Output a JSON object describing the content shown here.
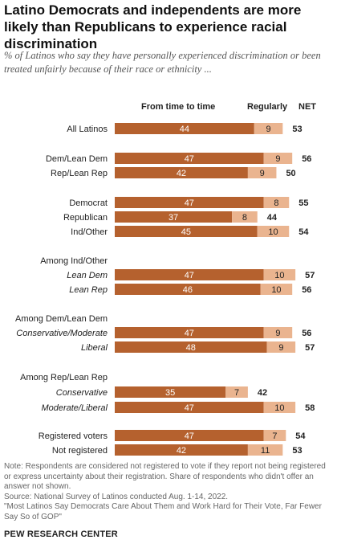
{
  "title": "Latino Democrats and independents are more likely than Republicans to experience racial discrimination",
  "subtitle": "% of Latinos who say they have personally experienced discrimination or been treated unfairly because of their race or ethnicity ...",
  "columns": {
    "from_time_to_time": "From time to time",
    "regularly": "Regularly",
    "net": "NET"
  },
  "colors": {
    "from_time_to_time": "#b5612e",
    "regularly": "#eab48f",
    "text_on_dark": "#ffffff",
    "text_on_light": "#222222"
  },
  "chart_data": {
    "type": "bar",
    "stacked": true,
    "orientation": "horizontal",
    "series": [
      {
        "name": "From time to time"
      },
      {
        "name": "Regularly"
      }
    ],
    "rows": [
      {
        "label": "All Latinos",
        "from_time_to_time": 44,
        "regularly": 9,
        "net": 53,
        "group": 0
      },
      {
        "label": "Dem/Lean Dem",
        "from_time_to_time": 47,
        "regularly": 9,
        "net": 56,
        "group": 1
      },
      {
        "label": "Rep/Lean Rep",
        "from_time_to_time": 42,
        "regularly": 9,
        "net": 50,
        "group": 1
      },
      {
        "label": "Democrat",
        "from_time_to_time": 47,
        "regularly": 8,
        "net": 55,
        "group": 2
      },
      {
        "label": "Republican",
        "from_time_to_time": 37,
        "regularly": 8,
        "net": 44,
        "group": 2
      },
      {
        "label": "Ind/Other",
        "from_time_to_time": 45,
        "regularly": 10,
        "net": 54,
        "group": 2
      },
      {
        "label": "Lean Dem",
        "header": "Among Ind/Other",
        "italic": true,
        "from_time_to_time": 47,
        "regularly": 10,
        "net": 57,
        "group": 3
      },
      {
        "label": "Lean Rep",
        "italic": true,
        "from_time_to_time": 46,
        "regularly": 10,
        "net": 56,
        "group": 3
      },
      {
        "label": "Conservative/Moderate",
        "header": "Among Dem/Lean Dem",
        "italic": true,
        "from_time_to_time": 47,
        "regularly": 9,
        "net": 56,
        "group": 4
      },
      {
        "label": "Liberal",
        "italic": true,
        "from_time_to_time": 48,
        "regularly": 9,
        "net": 57,
        "group": 4
      },
      {
        "label": "Conservative",
        "header": "Among Rep/Lean Rep",
        "italic": true,
        "from_time_to_time": 35,
        "regularly": 7,
        "net": 42,
        "group": 5
      },
      {
        "label": "Moderate/Liberal",
        "italic": true,
        "from_time_to_time": 47,
        "regularly": 10,
        "net": 58,
        "group": 5
      },
      {
        "label": "Registered voters",
        "from_time_to_time": 47,
        "regularly": 7,
        "net": 54,
        "group": 6
      },
      {
        "label": "Not registered",
        "from_time_to_time": 42,
        "regularly": 11,
        "net": 53,
        "group": 6
      }
    ]
  },
  "notes": {
    "note": "Note: Respondents are considered not registered to vote if they report not being registered or express uncertainty about their registration. Share of respondents who didn't offer an answer not shown.",
    "source": "Source: National Survey of Latinos conducted Aug. 1-14, 2022.",
    "report": "\"Most Latinos Say Democrats Care About Them and Work Hard for Their Vote, Far Fewer Say So of GOP\""
  },
  "brand": "PEW RESEARCH CENTER"
}
